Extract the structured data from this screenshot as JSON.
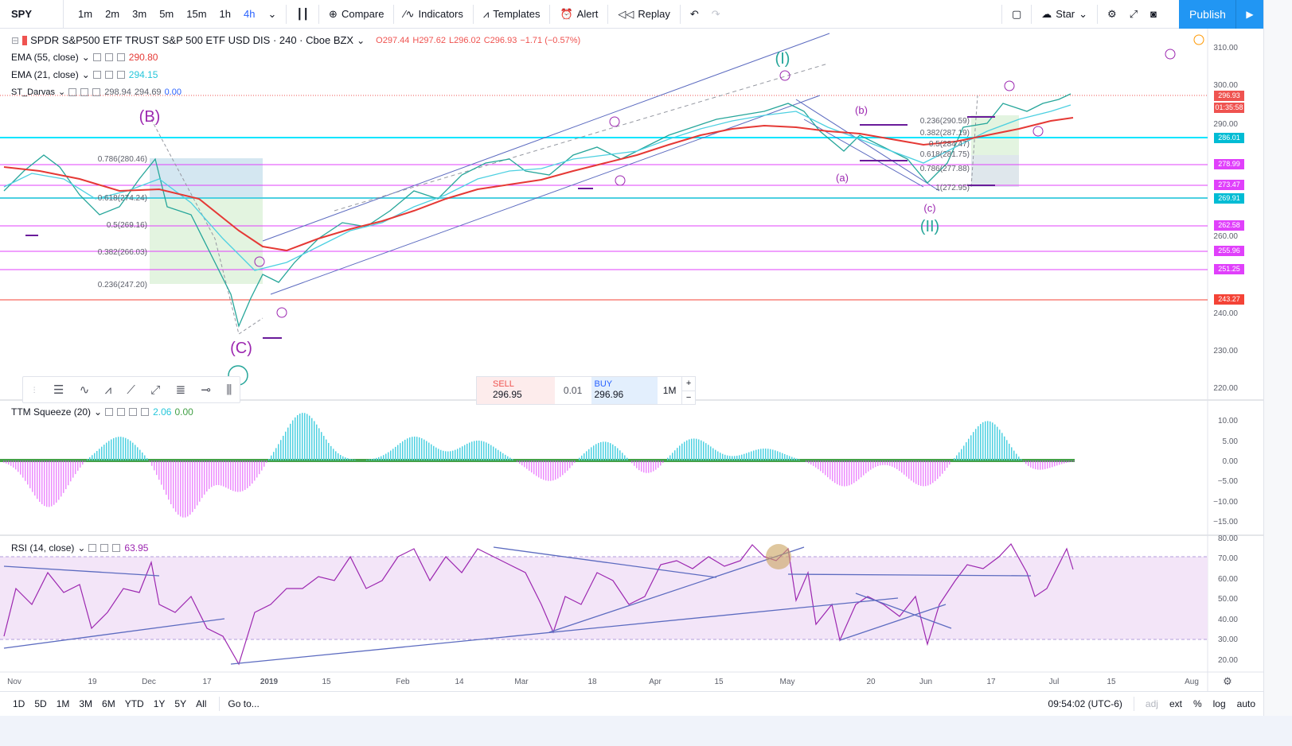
{
  "toolbar": {
    "symbol": "SPY",
    "intervals": [
      "1m",
      "2m",
      "3m",
      "5m",
      "15m",
      "1h",
      "4h"
    ],
    "active_interval": "4h",
    "compare": "Compare",
    "indicators": "Indicators",
    "templates": "Templates",
    "alert": "Alert",
    "replay": "Replay",
    "layout_name": "Star",
    "publish": "Publish"
  },
  "legend": {
    "title": "SPDR S&P500 ETF TRUST S&P 500 ETF USD DIS · 240 · Cboe BZX",
    "o": "O297.44",
    "h": "H297.62",
    "l": "L296.02",
    "c": "C296.93",
    "chg": "−1.71 (−0.57%)",
    "ema55_name": "EMA (55, close)",
    "ema55_val": "290.80",
    "ema21_name": "EMA (21, close)",
    "ema21_val": "294.15",
    "darvas_name": "ST_Darvas",
    "darvas_v1": "298.94",
    "darvas_v2": "294.69",
    "darvas_v3": "0.00",
    "ttm_name": "TTM Squeeze (20)",
    "ttm_v1": "2.06",
    "ttm_v2": "0.00",
    "rsi_name": "RSI (14, close)",
    "rsi_val": "63.95"
  },
  "trade": {
    "sell_label": "SELL",
    "sell_price": "296.95",
    "spread": "0.01",
    "buy_label": "BUY",
    "buy_price": "296.96",
    "timeframe": "1M",
    "plus": "+",
    "minus": "−"
  },
  "price_axis": {
    "ticks": [
      "310.00",
      "300.00",
      "290.00",
      "260.00",
      "240.00",
      "230.00",
      "220.00"
    ],
    "tags": [
      {
        "v": "296.93",
        "c": "#ef5350"
      },
      {
        "v": "01:35:58",
        "c": "#ef5350"
      },
      {
        "v": "286.01",
        "c": "#00bcd4"
      },
      {
        "v": "278.99",
        "c": "#e040fb"
      },
      {
        "v": "273.47",
        "c": "#e040fb"
      },
      {
        "v": "269.91",
        "c": "#00bcd4"
      },
      {
        "v": "262.58",
        "c": "#e040fb"
      },
      {
        "v": "255.96",
        "c": "#e040fb"
      },
      {
        "v": "251.25",
        "c": "#e040fb"
      },
      {
        "v": "243.27",
        "c": "#f44336"
      }
    ]
  },
  "ttm_axis": [
    "10.00",
    "5.00",
    "0.00",
    "−5.00",
    "−10.00",
    "−15.00"
  ],
  "rsi_axis": [
    "80.00",
    "70.00",
    "60.00",
    "50.00",
    "40.00",
    "30.00",
    "20.00"
  ],
  "time_axis": [
    "Nov",
    "19",
    "Dec",
    "17",
    "2019",
    "15",
    "Feb",
    "14",
    "Mar",
    "18",
    "Apr",
    "15",
    "May",
    "20",
    "Jun",
    "17",
    "Jul",
    "15",
    "Aug"
  ],
  "bottom": {
    "ranges": [
      "1D",
      "5D",
      "1M",
      "3M",
      "6M",
      "YTD",
      "1Y",
      "5Y",
      "All"
    ],
    "goto": "Go to...",
    "clock": "09:54:02 (UTC-6)",
    "adj": "adj",
    "ext": "ext",
    "pct": "%",
    "log": "log",
    "auto": "auto"
  },
  "annotations": {
    "wave_I": "(I)",
    "wave_II": "(II)",
    "wave_B": "(B)",
    "wave_C": "(C)",
    "wave_a": "(a)",
    "wave_b": "(b)",
    "wave_c": "(c)",
    "fib_left": [
      "0.786(280.46)",
      "0.618(274.24)",
      "0.5(269.16)",
      "0.382(266.03)",
      "0.236(247.20)"
    ],
    "fib_right": [
      "0.236(290.59)",
      "0.382(287.19)",
      "0.5(284.47)",
      "0.618(281.75)",
      "0.786(277.88)",
      "1(272.95)"
    ]
  },
  "colors": {
    "accent": "#2196f3",
    "ema55": "#e53935",
    "ema21": "#4dd0e1",
    "rsi": "#9c27b0",
    "up": "#26a69a",
    "down": "#ef5350"
  }
}
